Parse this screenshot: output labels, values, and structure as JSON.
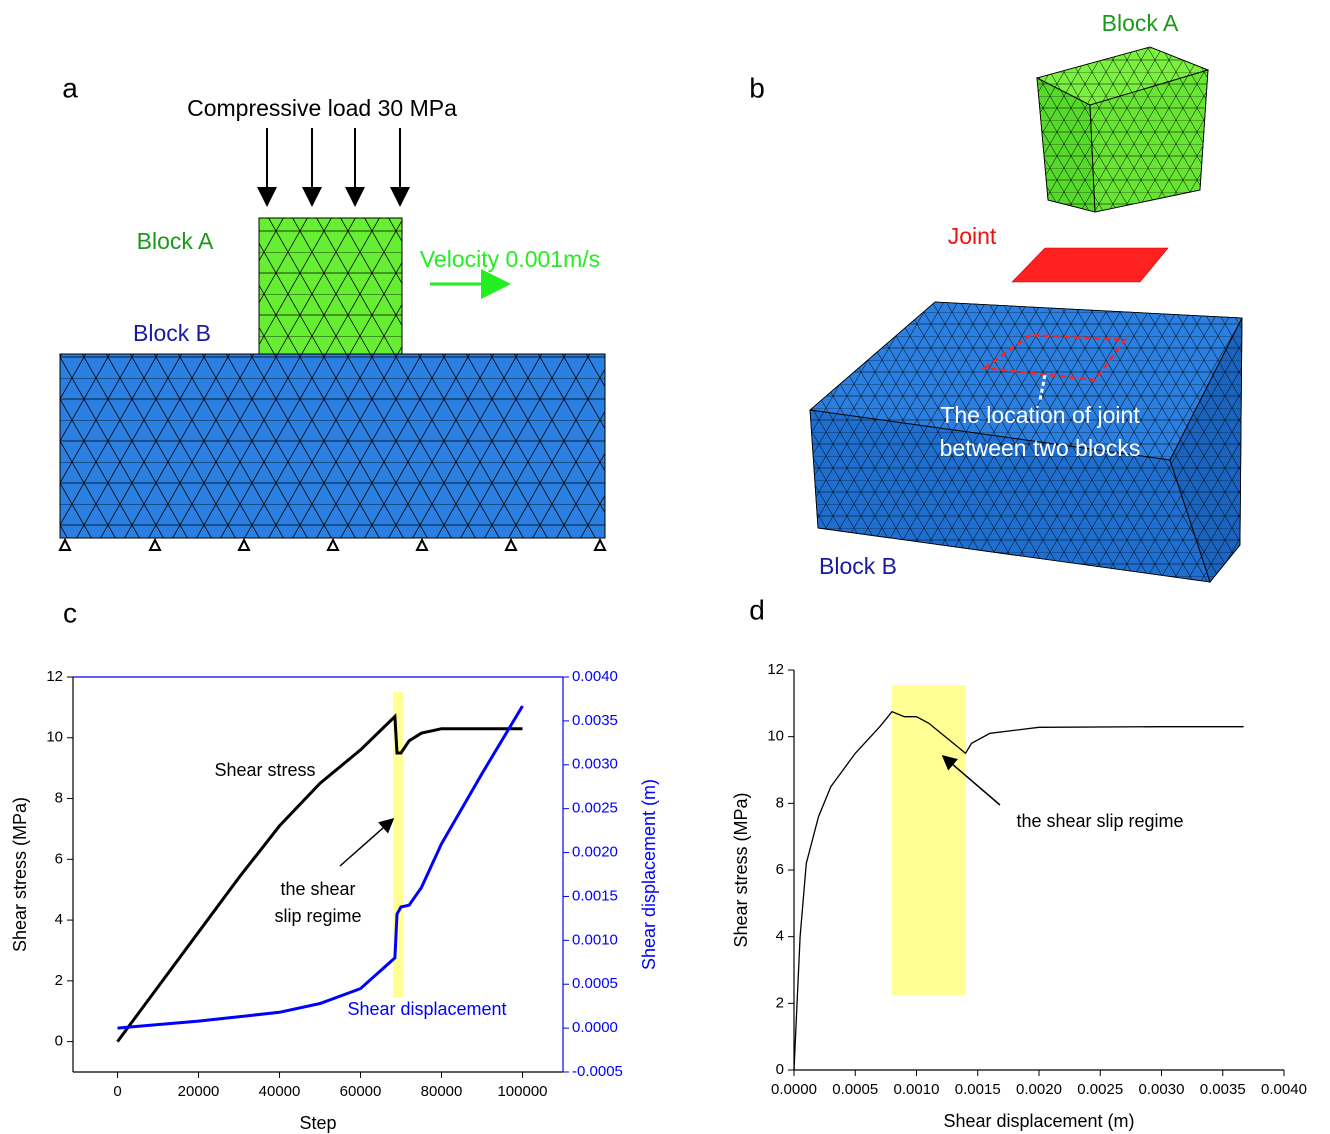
{
  "panel_a": {
    "label": "a",
    "load": "Compressive load 30 MPa",
    "block_a": "Block A",
    "velocity": "Velocity 0.001m/s",
    "block_b": "Block B"
  },
  "panel_b": {
    "label": "b",
    "block_a": "Block A",
    "joint": "Joint",
    "joint_note": [
      "The location of joint",
      "between two blocks"
    ],
    "block_b": "Block B"
  },
  "chart_data": [
    {
      "type": "line",
      "panel_label": "c",
      "x_label": "Step",
      "y_label": "Shear stress (MPa)",
      "y2_label": "Shear displacement (m)",
      "xlim": [
        -11000,
        110000
      ],
      "xticks": [
        0,
        20000,
        40000,
        60000,
        80000,
        100000
      ],
      "ylim": [
        -1,
        12
      ],
      "yticks": [
        0,
        2,
        4,
        6,
        8,
        10,
        12
      ],
      "y2lim": [
        -0.0005,
        0.004
      ],
      "y2ticks": [
        {
          "value": -0.0005,
          "label": "-0.0005"
        },
        {
          "value": 0,
          "label": "0.0000"
        },
        {
          "value": 0.0005,
          "label": "0.0005"
        },
        {
          "value": 0.001,
          "label": "0.0010"
        },
        {
          "value": 0.0015,
          "label": "0.0015"
        },
        {
          "value": 0.002,
          "label": "0.0020"
        },
        {
          "value": 0.0025,
          "label": "0.0025"
        },
        {
          "value": 0.003,
          "label": "0.0030"
        },
        {
          "value": 0.0035,
          "label": "0.0035"
        },
        {
          "value": 0.004,
          "label": "0.0040"
        }
      ],
      "y2_color": "#0000ff",
      "highlight": {
        "x": [
          68000,
          70500
        ],
        "color": "#ffff80"
      },
      "annotation": [
        "the shear",
        "slip regime"
      ],
      "series": [
        {
          "name": "Shear stress",
          "color": "#000000",
          "x": [
            0,
            10000,
            20000,
            30000,
            40000,
            50000,
            60000,
            68500,
            69000,
            70000,
            72000,
            75000,
            80000,
            90000,
            100000
          ],
          "values": [
            0,
            1.8,
            3.6,
            5.4,
            7.1,
            8.5,
            9.6,
            10.7,
            9.5,
            9.5,
            9.9,
            10.15,
            10.3,
            10.3,
            10.3
          ]
        },
        {
          "name": "Shear displacement",
          "color": "#0000ff",
          "axis": "y2",
          "x": [
            0,
            20000,
            40000,
            50000,
            60000,
            68500,
            69000,
            70000,
            72000,
            75000,
            80000,
            90000,
            100000
          ],
          "values": [
            0,
            8e-05,
            0.00018,
            0.00028,
            0.00045,
            0.0008,
            0.0013,
            0.00138,
            0.0014,
            0.0016,
            0.0021,
            0.0029,
            0.00367
          ]
        }
      ]
    },
    {
      "type": "line",
      "panel_label": "d",
      "x_label": "Shear displacement (m)",
      "y_label": "Shear stress (MPa)",
      "xlim": [
        0,
        0.004
      ],
      "xticks": [
        {
          "value": 0,
          "label": "0.0000"
        },
        {
          "value": 0.0005,
          "label": "0.0005"
        },
        {
          "value": 0.001,
          "label": "0.0010"
        },
        {
          "value": 0.0015,
          "label": "0.0015"
        },
        {
          "value": 0.002,
          "label": "0.0020"
        },
        {
          "value": 0.0025,
          "label": "0.0025"
        },
        {
          "value": 0.003,
          "label": "0.0030"
        },
        {
          "value": 0.0035,
          "label": "0.0035"
        },
        {
          "value": 0.004,
          "label": "0.0040"
        }
      ],
      "ylim": [
        0,
        12
      ],
      "yticks": [
        0,
        2,
        4,
        6,
        8,
        10,
        12
      ],
      "highlight": {
        "x": [
          0.0008,
          0.0014
        ],
        "color": "#ffff80"
      },
      "annotation": [
        "the shear slip regime"
      ],
      "series": [
        {
          "color": "#000000",
          "x": [
            0,
            5e-05,
            0.0001,
            0.0002,
            0.0003,
            0.0005,
            0.0007,
            0.0008,
            0.0009,
            0.001,
            0.0011,
            0.0012,
            0.0013,
            0.0014,
            0.00145,
            0.0016,
            0.002,
            0.003,
            0.00367
          ],
          "values": [
            0,
            4,
            6.2,
            7.6,
            8.5,
            9.5,
            10.3,
            10.75,
            10.6,
            10.6,
            10.4,
            10.1,
            9.8,
            9.5,
            9.8,
            10.1,
            10.28,
            10.3,
            10.3
          ]
        }
      ]
    }
  ]
}
